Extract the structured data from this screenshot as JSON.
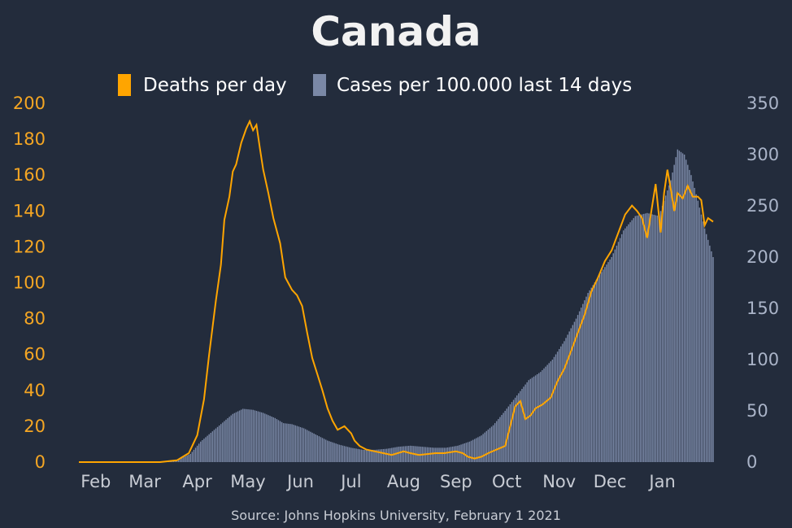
{
  "chart_data": {
    "type": "bar+line",
    "title": "Canada",
    "source": "Source: Johns Hopkins University, February 1 2021",
    "colors": {
      "background": "#232c3c",
      "deaths": "#ffa500",
      "cases": "#7a88a6",
      "left_axis": "#f5a623",
      "right_axis": "#aab4c8",
      "x_axis": "#c8ccd4"
    },
    "legend": {
      "placement": "top-center",
      "entries": [
        "Deaths per day",
        "Cases per 100.000 last 14 days"
      ]
    },
    "grid": false,
    "x_axis": {
      "type": "date",
      "range": [
        "2020-01-22",
        "2021-01-31"
      ],
      "tick_labels": [
        "Feb",
        "Mar",
        "Apr",
        "May",
        "Jun",
        "Jul",
        "Aug",
        "Sep",
        "Oct",
        "Nov",
        "Dec",
        "Jan"
      ],
      "tick_dates": [
        "2020-02-01",
        "2020-03-01",
        "2020-04-01",
        "2020-05-01",
        "2020-06-01",
        "2020-07-01",
        "2020-08-01",
        "2020-09-01",
        "2020-10-01",
        "2020-11-01",
        "2020-12-01",
        "2021-01-01"
      ]
    },
    "y_left": {
      "label": "",
      "ylim": [
        0,
        200
      ],
      "ticks": [
        "0",
        "20",
        "40",
        "60",
        "80",
        "100",
        "120",
        "140",
        "160",
        "180",
        "200"
      ]
    },
    "y_right": {
      "label": "",
      "ylim": [
        0,
        350
      ],
      "ticks": [
        "0",
        "50",
        "100",
        "150",
        "200",
        "250",
        "300",
        "350"
      ]
    },
    "series": [
      {
        "name": "Deaths per day",
        "type": "line",
        "axis": "left",
        "points": [
          [
            "2020-01-22",
            0
          ],
          [
            "2020-03-10",
            0
          ],
          [
            "2020-03-20",
            1
          ],
          [
            "2020-03-27",
            5
          ],
          [
            "2020-04-01",
            15
          ],
          [
            "2020-04-05",
            35
          ],
          [
            "2020-04-08",
            60
          ],
          [
            "2020-04-12",
            90
          ],
          [
            "2020-04-15",
            110
          ],
          [
            "2020-04-17",
            135
          ],
          [
            "2020-04-20",
            148
          ],
          [
            "2020-04-22",
            162
          ],
          [
            "2020-04-24",
            166
          ],
          [
            "2020-04-27",
            178
          ],
          [
            "2020-04-30",
            186
          ],
          [
            "2020-05-02",
            190
          ],
          [
            "2020-05-04",
            185
          ],
          [
            "2020-05-06",
            188
          ],
          [
            "2020-05-08",
            175
          ],
          [
            "2020-05-10",
            163
          ],
          [
            "2020-05-13",
            150
          ],
          [
            "2020-05-16",
            136
          ],
          [
            "2020-05-20",
            122
          ],
          [
            "2020-05-23",
            103
          ],
          [
            "2020-05-27",
            96
          ],
          [
            "2020-05-30",
            93
          ],
          [
            "2020-06-02",
            87
          ],
          [
            "2020-06-05",
            72
          ],
          [
            "2020-06-08",
            58
          ],
          [
            "2020-06-11",
            49
          ],
          [
            "2020-06-14",
            40
          ],
          [
            "2020-06-17",
            30
          ],
          [
            "2020-06-20",
            23
          ],
          [
            "2020-06-23",
            18
          ],
          [
            "2020-06-27",
            20
          ],
          [
            "2020-07-01",
            16
          ],
          [
            "2020-07-03",
            12
          ],
          [
            "2020-07-06",
            9
          ],
          [
            "2020-07-10",
            7
          ],
          [
            "2020-07-15",
            6
          ],
          [
            "2020-07-20",
            5
          ],
          [
            "2020-07-25",
            4
          ],
          [
            "2020-08-01",
            6
          ],
          [
            "2020-08-05",
            5
          ],
          [
            "2020-08-10",
            4
          ],
          [
            "2020-08-20",
            5
          ],
          [
            "2020-08-25",
            5
          ],
          [
            "2020-09-01",
            6
          ],
          [
            "2020-09-05",
            5
          ],
          [
            "2020-09-08",
            3
          ],
          [
            "2020-09-12",
            2
          ],
          [
            "2020-09-16",
            3
          ],
          [
            "2020-09-20",
            5
          ],
          [
            "2020-09-25",
            7
          ],
          [
            "2020-09-30",
            9
          ],
          [
            "2020-10-03",
            20
          ],
          [
            "2020-10-06",
            31
          ],
          [
            "2020-10-09",
            34
          ],
          [
            "2020-10-12",
            24
          ],
          [
            "2020-10-15",
            26
          ],
          [
            "2020-10-18",
            30
          ],
          [
            "2020-10-22",
            32
          ],
          [
            "2020-10-27",
            36
          ],
          [
            "2020-10-31",
            45
          ],
          [
            "2020-11-04",
            52
          ],
          [
            "2020-11-08",
            62
          ],
          [
            "2020-11-12",
            72
          ],
          [
            "2020-11-16",
            82
          ],
          [
            "2020-11-20",
            95
          ],
          [
            "2020-11-24",
            103
          ],
          [
            "2020-11-28",
            112
          ],
          [
            "2020-12-02",
            118
          ],
          [
            "2020-12-06",
            128
          ],
          [
            "2020-12-10",
            138
          ],
          [
            "2020-12-14",
            143
          ],
          [
            "2020-12-17",
            140
          ],
          [
            "2020-12-20",
            136
          ],
          [
            "2020-12-23",
            125
          ],
          [
            "2020-12-26",
            143
          ],
          [
            "2020-12-28",
            155
          ],
          [
            "2020-12-31",
            128
          ],
          [
            "2021-01-02",
            150
          ],
          [
            "2021-01-04",
            163
          ],
          [
            "2021-01-06",
            152
          ],
          [
            "2021-01-08",
            140
          ],
          [
            "2021-01-10",
            150
          ],
          [
            "2021-01-13",
            147
          ],
          [
            "2021-01-16",
            154
          ],
          [
            "2021-01-19",
            148
          ],
          [
            "2021-01-22",
            148
          ],
          [
            "2021-01-24",
            146
          ],
          [
            "2021-01-26",
            132
          ],
          [
            "2021-01-28",
            136
          ],
          [
            "2021-01-31",
            134
          ]
        ]
      },
      {
        "name": "Cases per 100.000 last 14 days",
        "type": "bar",
        "axis": "right",
        "points": [
          [
            "2020-01-22",
            0
          ],
          [
            "2020-03-10",
            0
          ],
          [
            "2020-03-20",
            2
          ],
          [
            "2020-03-28",
            8
          ],
          [
            "2020-04-03",
            20
          ],
          [
            "2020-04-10",
            30
          ],
          [
            "2020-04-17",
            40
          ],
          [
            "2020-04-22",
            47
          ],
          [
            "2020-04-28",
            52
          ],
          [
            "2020-05-04",
            51
          ],
          [
            "2020-05-10",
            48
          ],
          [
            "2020-05-17",
            43
          ],
          [
            "2020-05-22",
            38
          ],
          [
            "2020-05-27",
            37
          ],
          [
            "2020-06-03",
            33
          ],
          [
            "2020-06-10",
            27
          ],
          [
            "2020-06-17",
            21
          ],
          [
            "2020-06-24",
            17
          ],
          [
            "2020-07-01",
            14
          ],
          [
            "2020-07-08",
            12
          ],
          [
            "2020-07-15",
            12
          ],
          [
            "2020-07-22",
            13
          ],
          [
            "2020-07-29",
            15
          ],
          [
            "2020-08-05",
            16
          ],
          [
            "2020-08-12",
            15
          ],
          [
            "2020-08-19",
            14
          ],
          [
            "2020-08-26",
            14
          ],
          [
            "2020-09-02",
            16
          ],
          [
            "2020-09-09",
            20
          ],
          [
            "2020-09-16",
            26
          ],
          [
            "2020-09-23",
            36
          ],
          [
            "2020-09-30",
            50
          ],
          [
            "2020-10-07",
            65
          ],
          [
            "2020-10-14",
            80
          ],
          [
            "2020-10-21",
            88
          ],
          [
            "2020-10-28",
            100
          ],
          [
            "2020-11-04",
            118
          ],
          [
            "2020-11-11",
            140
          ],
          [
            "2020-11-18",
            165
          ],
          [
            "2020-11-25",
            183
          ],
          [
            "2020-12-02",
            200
          ],
          [
            "2020-12-09",
            226
          ],
          [
            "2020-12-16",
            240
          ],
          [
            "2020-12-23",
            243
          ],
          [
            "2020-12-30",
            240
          ],
          [
            "2021-01-06",
            275
          ],
          [
            "2021-01-10",
            305
          ],
          [
            "2021-01-14",
            300
          ],
          [
            "2021-01-18",
            280
          ],
          [
            "2021-01-22",
            255
          ],
          [
            "2021-01-26",
            228
          ],
          [
            "2021-01-31",
            200
          ]
        ]
      }
    ]
  }
}
